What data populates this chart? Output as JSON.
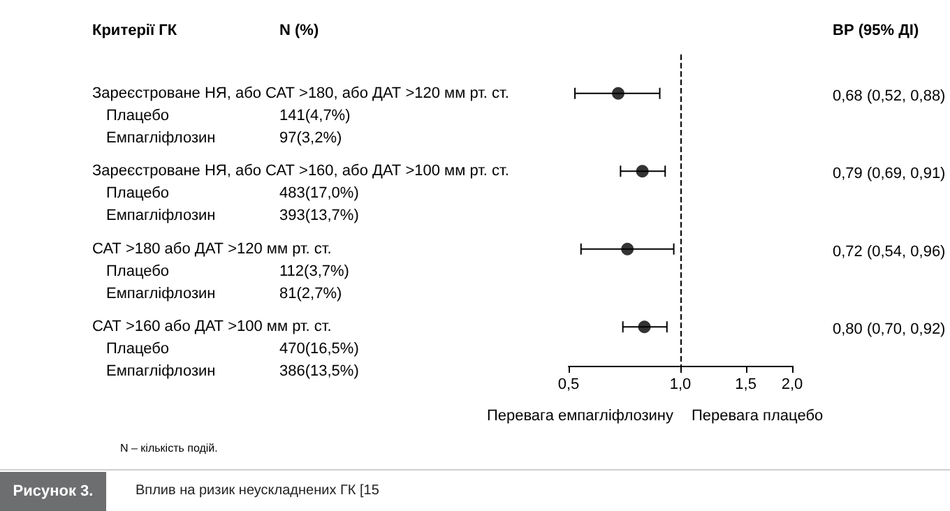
{
  "chart_data": {
    "type": "scatter",
    "title": "Вплив на ризик неускладнених ГК [15",
    "categories": [
      "Зареєстроване НЯ, або САТ >180, або ДАТ >120 мм рт. ст.",
      "Зареєстроване НЯ, або САТ >160, або ДАТ >100 мм рт. ст.",
      "САТ >180 або ДАТ >120 мм рт. ст.",
      "САТ >160 або ДАТ >100 мм рт. ст."
    ],
    "values": [
      0.68,
      0.79,
      0.72,
      0.8
    ],
    "errors": [
      [
        0.52,
        0.88
      ],
      [
        0.69,
        0.91
      ],
      [
        0.54,
        0.96
      ],
      [
        0.7,
        0.92
      ]
    ],
    "value_labels": [
      "0,68 (0,52, 0,88)",
      "0,79 (0,69, 0,91)",
      "0,72 (0,54, 0,96)",
      "0,80 (0,70, 0,92)"
    ],
    "color": "#000000",
    "marker": "circle",
    "orientation": "horizontal",
    "log": "x",
    "grid": false,
    "xlim": [
      0.5,
      2.0
    ],
    "xticks": [
      {
        "value": 0.5,
        "label": "0,5"
      },
      {
        "value": 1.0,
        "label": "1,0"
      },
      {
        "value": 1.5,
        "label": "1,5"
      },
      {
        "value": 2.0,
        "label": "2,0"
      }
    ],
    "ref_lines": [
      {
        "axis": "x",
        "value": 1.0,
        "line_style": "dashed",
        "color": "#000000"
      }
    ],
    "annotations": [
      "Критерії ГК",
      "N (%)",
      "ВР (95% ДІ)",
      "Плацебо",
      "141(4,7%)",
      "Емпагліфлозин",
      "97(3,2%)",
      "Плацебо",
      "483(17,0%)",
      "Емпагліфлозин",
      "393(13,7%)",
      "Плацебо",
      "112(3,7%)",
      "Емпагліфлозин",
      "81(2,7%)",
      "Плацебо",
      "470(16,5%)",
      "Емпагліфлозин",
      "386(13,5%)",
      "Перевага емпагліфлозину",
      "Перевага плацебо",
      "N – кількість подій.",
      "Рисунок 3."
    ]
  }
}
